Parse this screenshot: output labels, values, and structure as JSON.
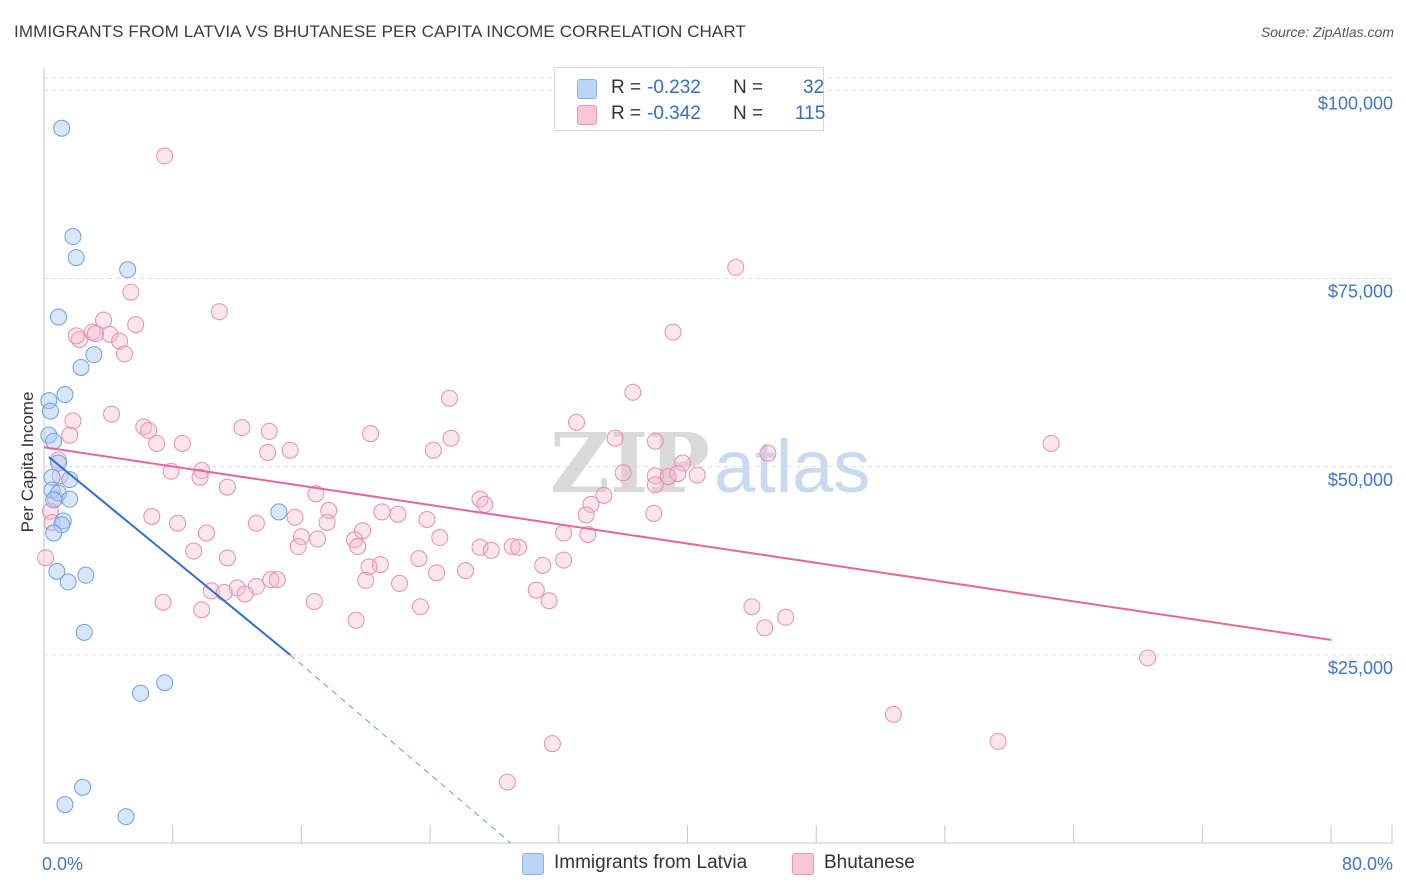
{
  "title": "IMMIGRANTS FROM LATVIA VS BHUTANESE PER CAPITA INCOME CORRELATION CHART",
  "source": "Source: ZipAtlas.com",
  "watermark": {
    "zip": "ZIP",
    "atlas": "atlas"
  },
  "legend": {
    "r_label": "R =",
    "n_label": "N =",
    "rows": [
      {
        "r": "-0.232",
        "n": "32",
        "color": "#a9c8f4"
      },
      {
        "r": "-0.342",
        "n": "115",
        "color": "#f7b5cb"
      }
    ]
  },
  "chart_data": {
    "type": "scatter",
    "title": "IMMIGRANTS FROM LATVIA VS BHUTANESE PER CAPITA INCOME CORRELATION CHART",
    "xlabel": "",
    "ylabel": "Per Capita Income",
    "xlim": [
      0,
      80
    ],
    "ylim": [
      0,
      103000
    ],
    "x_tick_labels": [
      "0.0%",
      "80.0%"
    ],
    "y_ticks": [
      25000,
      50000,
      75000,
      100000
    ],
    "y_tick_labels": [
      "$25,000",
      "$50,000",
      "$75,000",
      "$100,000"
    ],
    "grid": true,
    "legend_position": "top-center",
    "series": [
      {
        "name": "Immigrants from Latvia",
        "color": "#a9c8f4",
        "line_color": "#2b6fd4",
        "trend": {
          "x0": 0.3,
          "y0": 51300,
          "x1": 15.3,
          "y1": 25000,
          "dash_to_x": 29,
          "dash_to_y": 0
        },
        "points": [
          [
            1.1,
            95000
          ],
          [
            1.8,
            80600
          ],
          [
            2.0,
            77800
          ],
          [
            5.2,
            76200
          ],
          [
            0.9,
            69900
          ],
          [
            3.1,
            64900
          ],
          [
            2.3,
            63200
          ],
          [
            1.3,
            59600
          ],
          [
            0.3,
            58800
          ],
          [
            0.4,
            57400
          ],
          [
            0.3,
            54200
          ],
          [
            0.6,
            53400
          ],
          [
            0.9,
            50500
          ],
          [
            1.6,
            48300
          ],
          [
            0.5,
            48600
          ],
          [
            0.5,
            46900
          ],
          [
            0.9,
            46500
          ],
          [
            1.6,
            45700
          ],
          [
            0.6,
            45600
          ],
          [
            1.2,
            42800
          ],
          [
            1.1,
            42300
          ],
          [
            0.6,
            41200
          ],
          [
            0.8,
            36100
          ],
          [
            2.6,
            35600
          ],
          [
            1.5,
            34700
          ],
          [
            14.6,
            44000
          ],
          [
            2.5,
            28000
          ],
          [
            7.5,
            21300
          ],
          [
            6.0,
            19900
          ],
          [
            2.4,
            7400
          ],
          [
            1.3,
            5100
          ],
          [
            5.1,
            3500
          ]
        ]
      },
      {
        "name": "Bhutanese",
        "color": "#f7b5cb",
        "line_color": "#e4699a",
        "trend": {
          "x0": 0,
          "y0": 52600,
          "x1": 80,
          "y1": 27000
        },
        "points": [
          [
            7.5,
            91300
          ],
          [
            43.0,
            76500
          ],
          [
            5.4,
            73200
          ],
          [
            10.9,
            70600
          ],
          [
            3.7,
            69500
          ],
          [
            5.7,
            68900
          ],
          [
            39.1,
            67900
          ],
          [
            3.0,
            67900
          ],
          [
            4.1,
            67600
          ],
          [
            2.2,
            66900
          ],
          [
            2.0,
            67400
          ],
          [
            4.7,
            66700
          ],
          [
            3.2,
            67700
          ],
          [
            5.0,
            65000
          ],
          [
            36.6,
            59900
          ],
          [
            25.2,
            59100
          ],
          [
            4.2,
            57000
          ],
          [
            1.8,
            56100
          ],
          [
            33.1,
            55900
          ],
          [
            6.2,
            55300
          ],
          [
            6.5,
            54800
          ],
          [
            12.3,
            55200
          ],
          [
            14.0,
            54700
          ],
          [
            20.3,
            54400
          ],
          [
            1.6,
            54200
          ],
          [
            25.3,
            53800
          ],
          [
            35.5,
            53800
          ],
          [
            38.0,
            53400
          ],
          [
            62.6,
            53100
          ],
          [
            7.0,
            53100
          ],
          [
            8.6,
            53100
          ],
          [
            45.0,
            51800
          ],
          [
            15.3,
            52200
          ],
          [
            13.9,
            51900
          ],
          [
            24.2,
            52200
          ],
          [
            39.7,
            50500
          ],
          [
            9.8,
            49500
          ],
          [
            36.0,
            49200
          ],
          [
            38.0,
            48800
          ],
          [
            38.8,
            48700
          ],
          [
            40.6,
            48900
          ],
          [
            39.4,
            49100
          ],
          [
            1.0,
            48800
          ],
          [
            11.4,
            47300
          ],
          [
            9.7,
            48600
          ],
          [
            38.0,
            47600
          ],
          [
            16.9,
            46400
          ],
          [
            34.8,
            46200
          ],
          [
            27.1,
            45700
          ],
          [
            27.4,
            45000
          ],
          [
            34.0,
            45000
          ],
          [
            17.7,
            44200
          ],
          [
            21.0,
            44000
          ],
          [
            6.7,
            43400
          ],
          [
            15.6,
            43300
          ],
          [
            23.8,
            43000
          ],
          [
            33.7,
            43600
          ],
          [
            37.9,
            43800
          ],
          [
            17.6,
            42600
          ],
          [
            13.2,
            42500
          ],
          [
            8.3,
            42500
          ],
          [
            19.8,
            41500
          ],
          [
            10.1,
            41200
          ],
          [
            24.6,
            40600
          ],
          [
            32.3,
            41200
          ],
          [
            33.8,
            41000
          ],
          [
            16.0,
            40700
          ],
          [
            17.0,
            40400
          ],
          [
            19.3,
            40300
          ],
          [
            15.8,
            39400
          ],
          [
            19.5,
            39400
          ],
          [
            27.1,
            39300
          ],
          [
            29.1,
            39400
          ],
          [
            29.5,
            39300
          ],
          [
            27.8,
            38900
          ],
          [
            9.3,
            38800
          ],
          [
            11.4,
            37900
          ],
          [
            23.3,
            37800
          ],
          [
            32.3,
            37600
          ],
          [
            20.9,
            37000
          ],
          [
            31.0,
            36900
          ],
          [
            20.2,
            36700
          ],
          [
            24.4,
            35900
          ],
          [
            14.1,
            35000
          ],
          [
            20.0,
            34900
          ],
          [
            22.1,
            34500
          ],
          [
            14.5,
            35000
          ],
          [
            13.2,
            34100
          ],
          [
            12.0,
            33900
          ],
          [
            30.6,
            33600
          ],
          [
            12.5,
            33100
          ],
          [
            10.4,
            33500
          ],
          [
            16.8,
            32100
          ],
          [
            7.4,
            32000
          ],
          [
            31.4,
            32200
          ],
          [
            9.8,
            31000
          ],
          [
            23.4,
            31400
          ],
          [
            44.0,
            31400
          ],
          [
            46.1,
            30000
          ],
          [
            19.4,
            29600
          ],
          [
            44.8,
            28600
          ],
          [
            68.6,
            24600
          ],
          [
            52.8,
            17100
          ],
          [
            59.3,
            13500
          ],
          [
            31.6,
            13200
          ],
          [
            28.8,
            8100
          ],
          [
            0.4,
            44100
          ],
          [
            0.7,
            45800
          ],
          [
            0.1,
            37900
          ],
          [
            22.0,
            43700
          ],
          [
            26.2,
            36200
          ],
          [
            7.9,
            49400
          ],
          [
            11.2,
            33300
          ],
          [
            0.5,
            42600
          ],
          [
            0.9,
            50900
          ]
        ]
      }
    ]
  }
}
